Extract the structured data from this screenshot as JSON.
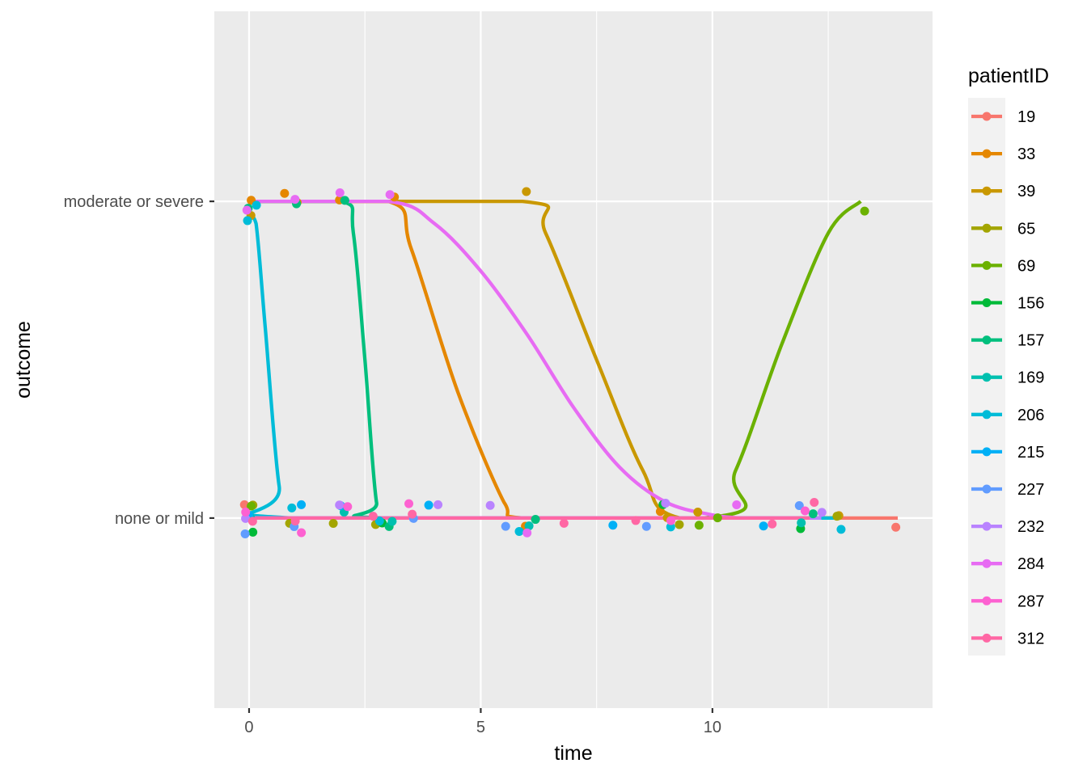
{
  "chart_data": {
    "type": "line",
    "xlabel": "time",
    "ylabel": "outcome",
    "xlim": [
      -0.75,
      14.75
    ],
    "x_ticks": [
      0,
      5,
      10
    ],
    "x_tick_labels": [
      "0",
      "5",
      "10"
    ],
    "y_categories": [
      "none or mild",
      "moderate or severe"
    ],
    "ylim": [
      -0.6,
      1.6
    ],
    "grid": true,
    "legend": {
      "title": "patientID",
      "placement": "right",
      "entries": [
        "19",
        "33",
        "39",
        "65",
        "69",
        "156",
        "157",
        "169",
        "206",
        "215",
        "227",
        "232",
        "284",
        "287",
        "312"
      ]
    },
    "colors": {
      "19": "#F8766D",
      "33": "#E58700",
      "39": "#C99800",
      "65": "#A3A500",
      "69": "#6BB100",
      "156": "#00BA38",
      "157": "#00BF7D",
      "169": "#00C0AF",
      "206": "#00BCD8",
      "215": "#00B0F6",
      "227": "#619CFF",
      "232": "#B983FF",
      "284": "#E76BF3",
      "287": "#FD61D1",
      "312": "#FF67A4"
    },
    "series": [
      {
        "name": "19",
        "points": [
          [
            0,
            0
          ],
          [
            14,
            0
          ]
        ],
        "curve": [
          [
            0,
            0
          ],
          [
            14,
            0
          ]
        ]
      },
      {
        "name": "33",
        "points": [
          [
            0,
            1
          ],
          [
            0.8,
            1
          ],
          [
            1.9,
            1
          ],
          [
            3.1,
            1
          ],
          [
            5.9,
            0
          ],
          [
            8.9,
            0
          ]
        ],
        "curve": [
          [
            0,
            1
          ],
          [
            3.0,
            1
          ],
          [
            3.5,
            0.85
          ],
          [
            4.5,
            0.4
          ],
          [
            5.5,
            0.05
          ],
          [
            5.9,
            0
          ],
          [
            8.9,
            0
          ]
        ]
      },
      {
        "name": "39",
        "points": [
          [
            0,
            1
          ],
          [
            1,
            1
          ],
          [
            5.9,
            1
          ],
          [
            9.1,
            0
          ],
          [
            9.6,
            0
          ],
          [
            12.7,
            0
          ]
        ],
        "curve": [
          [
            0,
            1
          ],
          [
            5.9,
            1
          ],
          [
            6.4,
            0.9
          ],
          [
            7.5,
            0.5
          ],
          [
            8.5,
            0.15
          ],
          [
            9.3,
            0
          ],
          [
            12.7,
            0
          ]
        ]
      },
      {
        "name": "65",
        "points": [
          [
            0,
            0
          ],
          [
            0.9,
            0
          ],
          [
            1.75,
            0
          ],
          [
            2.8,
            0
          ],
          [
            9.3,
            0
          ],
          [
            12.6,
            0
          ]
        ],
        "curve": [
          [
            0,
            0
          ],
          [
            12.6,
            0
          ]
        ]
      },
      {
        "name": "69",
        "points": [
          [
            0,
            0
          ],
          [
            9.8,
            0
          ],
          [
            10.1,
            0
          ],
          [
            13.3,
            1
          ]
        ],
        "curve": [
          [
            0,
            0
          ],
          [
            9.8,
            0
          ],
          [
            10.5,
            0.15
          ],
          [
            11.5,
            0.55
          ],
          [
            12.5,
            0.9
          ],
          [
            13.2,
            1
          ]
        ]
      },
      {
        "name": "156",
        "points": [
          [
            0,
            0
          ],
          [
            2.9,
            0
          ],
          [
            8.9,
            0
          ],
          [
            11.9,
            0
          ]
        ],
        "curve": [
          [
            0,
            0
          ],
          [
            11.9,
            0
          ]
        ]
      },
      {
        "name": "157",
        "points": [
          [
            0,
            1
          ],
          [
            1.05,
            1
          ],
          [
            2.1,
            1
          ],
          [
            3.0,
            0
          ],
          [
            6.1,
            0
          ],
          [
            12.1,
            0
          ]
        ],
        "curve": [
          [
            0,
            1
          ],
          [
            2.0,
            1
          ],
          [
            2.25,
            0.9
          ],
          [
            2.5,
            0.5
          ],
          [
            2.75,
            0.05
          ],
          [
            3.0,
            0
          ],
          [
            12.1,
            0
          ]
        ]
      },
      {
        "name": "169",
        "points": [
          [
            0,
            0
          ],
          [
            2.05,
            0
          ],
          [
            3.0,
            0
          ],
          [
            6.0,
            0
          ],
          [
            11.9,
            0
          ]
        ],
        "curve": [
          [
            0,
            0
          ],
          [
            11.9,
            0
          ]
        ]
      },
      {
        "name": "206",
        "points": [
          [
            0,
            0.95
          ],
          [
            0.1,
            0.95
          ],
          [
            1.0,
            0
          ],
          [
            2.9,
            0
          ],
          [
            5.9,
            0
          ],
          [
            9.0,
            0
          ],
          [
            12.75,
            0
          ]
        ],
        "curve": [
          [
            0,
            0.96
          ],
          [
            0.15,
            0.93
          ],
          [
            0.35,
            0.6
          ],
          [
            0.65,
            0.1
          ],
          [
            0.95,
            0
          ],
          [
            12.75,
            0
          ]
        ]
      },
      {
        "name": "215",
        "points": [
          [
            0,
            0
          ],
          [
            1.2,
            0
          ],
          [
            1.9,
            0
          ],
          [
            3.8,
            0
          ],
          [
            7.8,
            0
          ],
          [
            11.2,
            0
          ]
        ],
        "curve": [
          [
            0,
            0
          ],
          [
            11.2,
            0
          ]
        ]
      },
      {
        "name": "227",
        "points": [
          [
            0,
            0
          ],
          [
            0.95,
            0
          ],
          [
            3.5,
            0
          ],
          [
            5.5,
            0
          ],
          [
            8.5,
            0
          ],
          [
            11.9,
            0
          ]
        ],
        "curve": [
          [
            0,
            0
          ],
          [
            11.9,
            0
          ]
        ]
      },
      {
        "name": "232",
        "points": [
          [
            0,
            0
          ],
          [
            2.05,
            0
          ],
          [
            4.05,
            0
          ],
          [
            5.3,
            0
          ],
          [
            9.05,
            0
          ],
          [
            12.35,
            0
          ]
        ],
        "curve": [
          [
            0,
            0
          ],
          [
            12.35,
            0
          ]
        ]
      },
      {
        "name": "284",
        "points": [
          [
            0,
            1
          ],
          [
            1.05,
            1
          ],
          [
            2.05,
            1
          ],
          [
            3.0,
            1
          ],
          [
            6.0,
            0
          ],
          [
            10.6,
            0
          ]
        ],
        "curve": [
          [
            0,
            1
          ],
          [
            3.0,
            1
          ],
          [
            4.0,
            0.93
          ],
          [
            5.0,
            0.78
          ],
          [
            6.0,
            0.58
          ],
          [
            7.0,
            0.35
          ],
          [
            8.0,
            0.16
          ],
          [
            9.0,
            0.05
          ],
          [
            10.0,
            0.01
          ],
          [
            10.6,
            0
          ]
        ]
      },
      {
        "name": "287",
        "points": [
          [
            0,
            0
          ],
          [
            1.05,
            0
          ],
          [
            2.05,
            0
          ],
          [
            3.35,
            0
          ],
          [
            9.05,
            0
          ],
          [
            12.05,
            0
          ]
        ],
        "curve": [
          [
            0,
            0
          ],
          [
            12.05,
            0
          ]
        ]
      },
      {
        "name": "312",
        "points": [
          [
            0,
            0
          ],
          [
            1.05,
            0
          ],
          [
            2.6,
            0
          ],
          [
            3.55,
            0
          ],
          [
            6.75,
            0
          ],
          [
            8.3,
            0
          ],
          [
            11.35,
            0
          ],
          [
            12.1,
            0
          ]
        ],
        "curve": [
          [
            0,
            0
          ],
          [
            12.1,
            0
          ]
        ]
      }
    ]
  }
}
